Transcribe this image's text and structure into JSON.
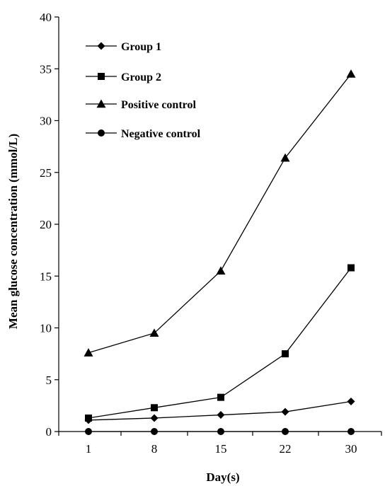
{
  "chart_data": {
    "type": "line",
    "title": "",
    "xlabel": "Day(s)",
    "ylabel": "Mean glucose concentration (mmol/L)",
    "categories": [
      "1",
      "8",
      "15",
      "22",
      "30"
    ],
    "ylim": [
      0,
      40
    ],
    "yticks": [
      "0",
      "5",
      "10",
      "15",
      "20",
      "25",
      "30",
      "35",
      "40"
    ],
    "grid": false,
    "legend_position": "top-left",
    "series": [
      {
        "name": "Group 1",
        "marker": "diamond",
        "values": [
          1.1,
          1.3,
          1.6,
          1.9,
          2.9
        ]
      },
      {
        "name": "Group 2",
        "marker": "square",
        "values": [
          1.3,
          2.3,
          3.3,
          7.5,
          15.8
        ]
      },
      {
        "name": "Positive control",
        "marker": "triangle",
        "values": [
          7.6,
          9.5,
          15.5,
          26.4,
          34.5
        ]
      },
      {
        "name": "Negative control",
        "marker": "circle",
        "values": [
          0.0,
          0.0,
          0.0,
          0.0,
          0.0
        ]
      }
    ],
    "colors": {
      "line": "#000000",
      "background": "#ffffff"
    }
  }
}
